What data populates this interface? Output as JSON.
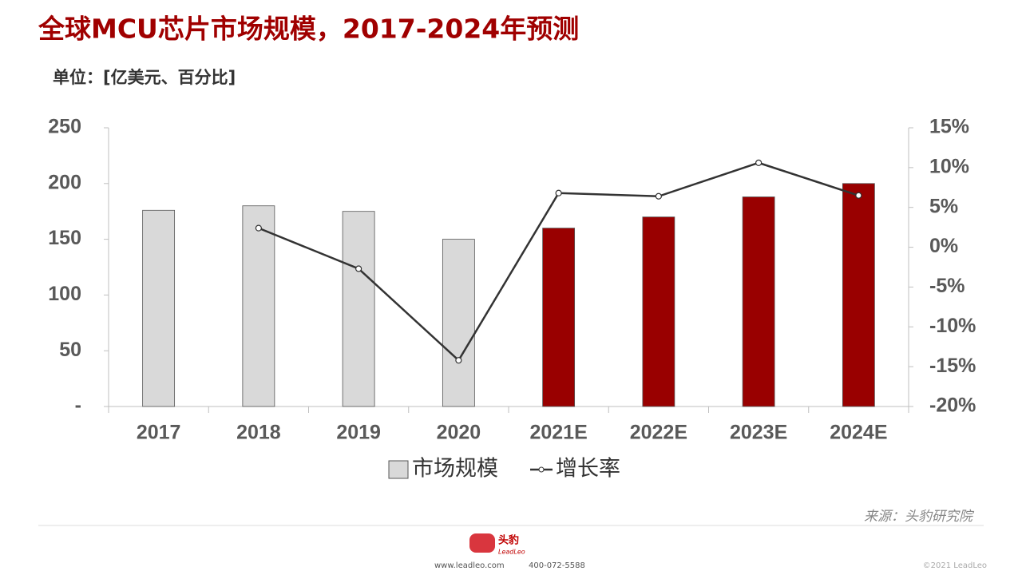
{
  "chart_data": {
    "type": "combo",
    "title": "全球MCU芯片市场规模，2017-2024年预测",
    "subtitle": "单位：[亿美元、百分比]",
    "categories": [
      "2017",
      "2018",
      "2019",
      "2020",
      "2021E",
      "2022E",
      "2023E",
      "2024E"
    ],
    "series": [
      {
        "name": "市场规模",
        "type": "bar",
        "values": [
          176,
          180,
          175,
          150,
          160,
          170,
          188,
          200
        ],
        "colors": [
          "#d9d9d9",
          "#d9d9d9",
          "#d9d9d9",
          "#d9d9d9",
          "#990000",
          "#990000",
          "#990000",
          "#990000"
        ]
      },
      {
        "name": "增长率",
        "type": "line",
        "axis": "y2",
        "color": "#333333",
        "values": [
          null,
          2.4,
          -2.7,
          -14.2,
          6.8,
          6.4,
          10.6,
          6.5
        ]
      }
    ],
    "ylim": [
      0,
      250
    ],
    "yticks": [
      {
        "value": 0,
        "label": "-"
      },
      50,
      100,
      150,
      200,
      250
    ],
    "y2lim": [
      -20,
      15
    ],
    "y2ticks": [
      {
        "value": -20,
        "label": "-20%"
      },
      {
        "value": -15,
        "label": "-15%"
      },
      {
        "value": -10,
        "label": "-10%"
      },
      {
        "value": -5,
        "label": "-5%"
      },
      {
        "value": 0,
        "label": "0%"
      },
      {
        "value": 5,
        "label": "5%"
      },
      {
        "value": 10,
        "label": "10%"
      },
      {
        "value": 15,
        "label": "15%"
      }
    ],
    "legend": "bottom"
  },
  "source": "来源：头豹研究院",
  "footer": {
    "logo": "头豹",
    "logo_sub": "LeadLeo",
    "website": "www.leadleo.com",
    "phone": "400-072-5588",
    "copyright": "©2021 LeadLeo"
  }
}
